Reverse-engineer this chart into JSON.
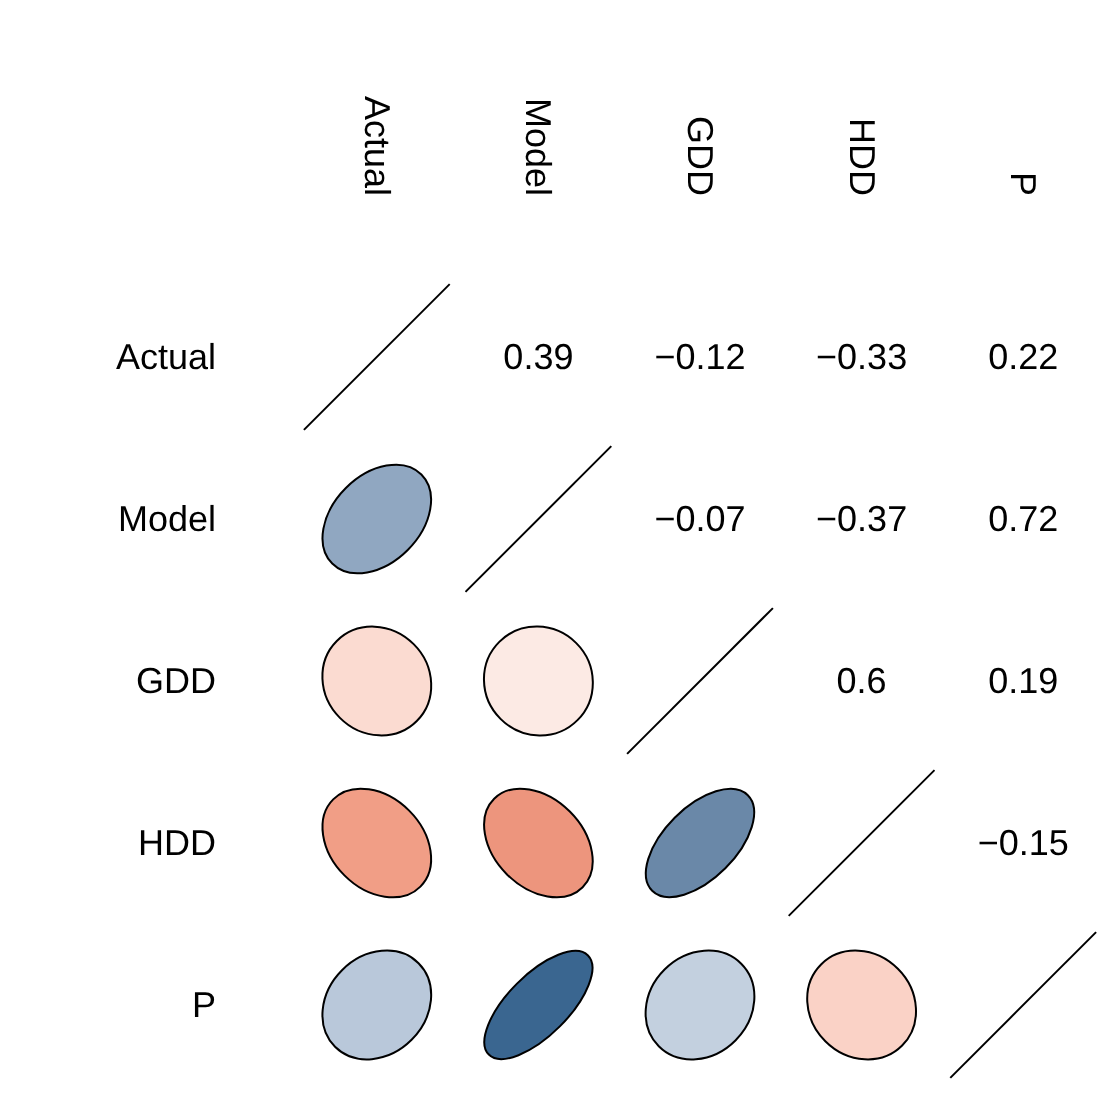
{
  "chart_data": {
    "type": "heatmap",
    "categories": [
      "Actual",
      "Model",
      "GDD",
      "HDD",
      "P"
    ],
    "y_categories": [
      "Actual",
      "Model",
      "GDD",
      "HDD",
      "P"
    ],
    "cells": [
      [
        null,
        0.39,
        -0.12,
        -0.33,
        0.22
      ],
      [
        null,
        null,
        -0.07,
        -0.37,
        0.72
      ],
      [
        null,
        null,
        null,
        0.6,
        0.19
      ],
      [
        null,
        null,
        null,
        null,
        -0.15
      ],
      [
        null,
        null,
        null,
        null,
        null
      ]
    ],
    "cell_labels": [
      [
        null,
        "0.39",
        "−0.12",
        "−0.33",
        "0.22"
      ],
      [
        null,
        null,
        "−0.07",
        "−0.37",
        "0.72"
      ],
      [
        null,
        null,
        null,
        "0.6",
        "0.19"
      ],
      [
        null,
        null,
        null,
        null,
        "−0.15"
      ],
      [
        null,
        null,
        null,
        null,
        null
      ]
    ]
  }
}
